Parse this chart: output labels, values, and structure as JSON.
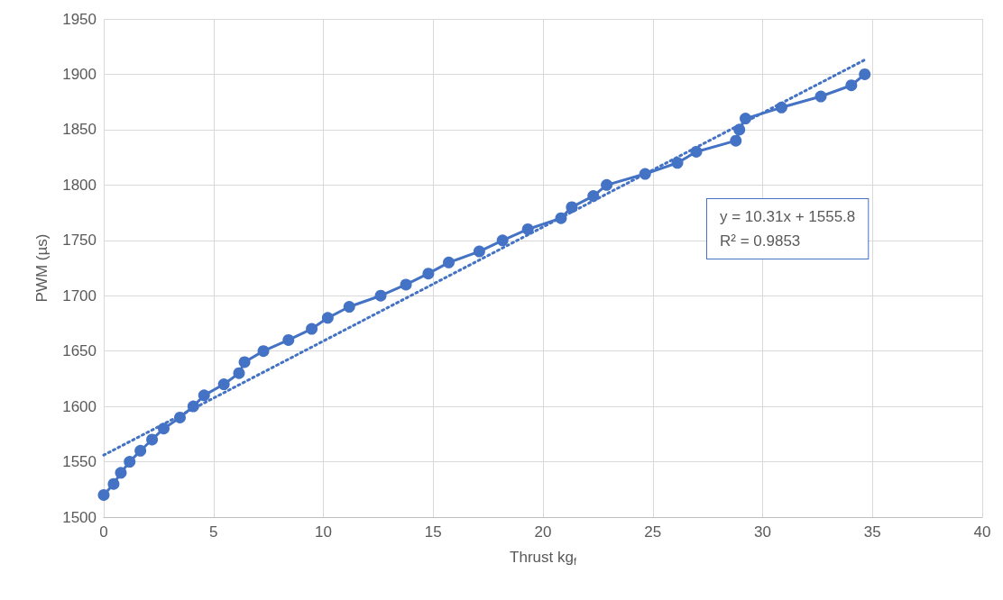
{
  "chart_data": {
    "type": "line",
    "xlabel": "Thrust kg$_{f}$",
    "ylabel": "PWM (µs)",
    "xlim": [
      0,
      40
    ],
    "xticks": [
      0,
      5,
      10,
      15,
      20,
      25,
      30,
      35,
      40
    ],
    "ylim": [
      1500,
      1950
    ],
    "yticks": [
      1500,
      1550,
      1600,
      1650,
      1700,
      1750,
      1800,
      1850,
      1900,
      1950
    ],
    "grid": true,
    "series": [
      {
        "color": "#4472c4",
        "marker": "circle",
        "line_style": "solid",
        "x": [
          0,
          0.45,
          0.78,
          1.18,
          1.67,
          2.2,
          2.73,
          3.47,
          4.08,
          4.57,
          5.47,
          6.16,
          6.41,
          7.27,
          8.41,
          9.47,
          10.2,
          11.18,
          12.61,
          13.76,
          14.78,
          15.71,
          17.1,
          18.16,
          19.31,
          20.82,
          21.31,
          22.29,
          22.9,
          24.65,
          26.12,
          26.98,
          28.78,
          28.94,
          29.22,
          30.86,
          32.65,
          34.04,
          34.65
        ],
        "values": [
          1520,
          1530,
          1540,
          1550,
          1560,
          1570,
          1580,
          1590,
          1600,
          1610,
          1620,
          1630,
          1640,
          1650,
          1660,
          1670,
          1680,
          1690,
          1700,
          1710,
          1720,
          1730,
          1740,
          1750,
          1760,
          1770,
          1780,
          1790,
          1800,
          1810,
          1820,
          1830,
          1840,
          1850,
          1860,
          1870,
          1880,
          1890,
          1900
        ]
      },
      {
        "color": "#4472c4",
        "marker": "none",
        "line_style": "dotted",
        "x": [
          0,
          34.65
        ],
        "values": [
          1556,
          1913
        ]
      }
    ],
    "annotations": [
      "y = 10.31x + 1555.8",
      "R² = 0.9853"
    ]
  }
}
